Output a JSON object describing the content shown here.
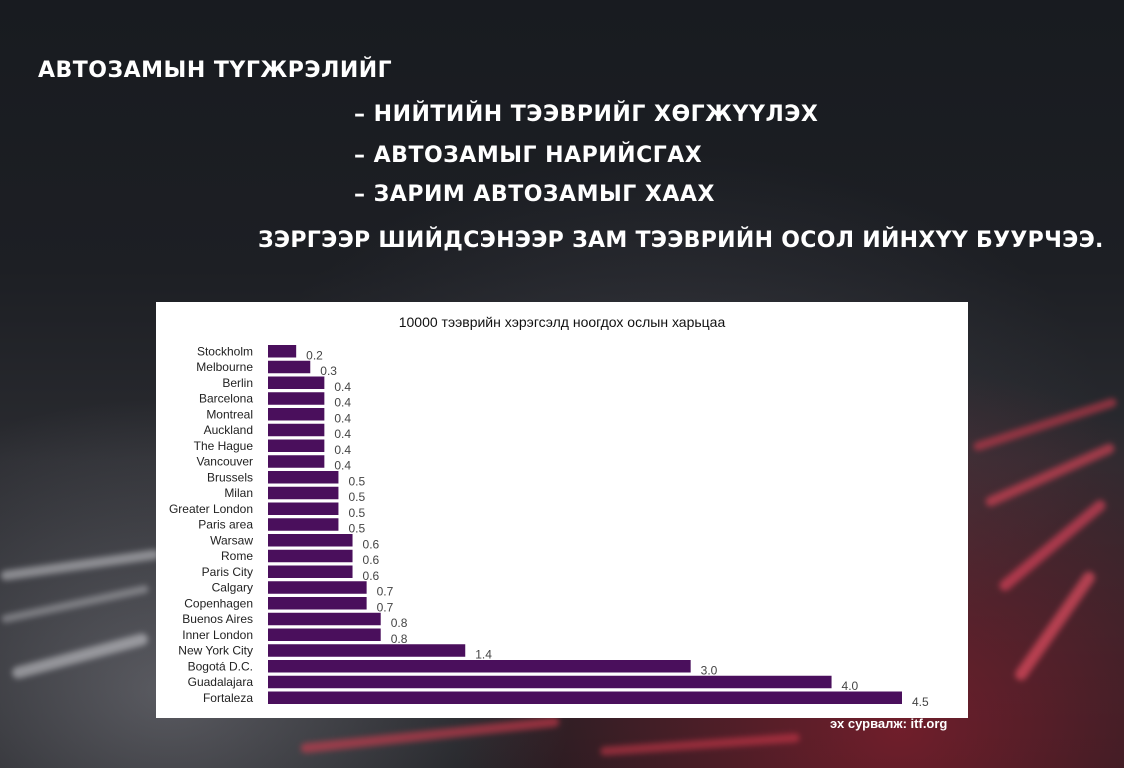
{
  "slide": {
    "heading": "АВТОЗАМЫН ТҮГЖРЭЛИЙГ",
    "bullets": [
      "– НИЙТИЙН ТЭЭВРИЙГ ХӨГЖҮҮЛЭХ",
      "– АВТОЗАМЫГ НАРИЙСГАХ",
      "– ЗАРИМ АВТОЗАМЫГ ХААХ"
    ],
    "conclusion": "ЗЭРГЭЭР ШИЙДСЭНЭЭР ЗАМ ТЭЭВРИЙН ОСОЛ ИЙНХҮҮ БУУРЧЭЭ.",
    "source": "эх сурвалж: itf.org"
  },
  "colors": {
    "bar": "#4a0f5c",
    "label": "#222222",
    "value": "#444444"
  },
  "chart_data": {
    "type": "bar",
    "orientation": "horizontal",
    "title": "10000 тээврийн хэрэгсэлд ноогдох ослын харьцаа",
    "xlabel": "",
    "ylabel": "",
    "xlim": [
      0,
      4.5
    ],
    "grid": false,
    "categories": [
      "Stockholm",
      "Melbourne",
      "Berlin",
      "Barcelona",
      "Montreal",
      "Auckland",
      "The Hague",
      "Vancouver",
      "Brussels",
      "Milan",
      "Greater London",
      "Paris area",
      "Warsaw",
      "Rome",
      "Paris City",
      "Calgary",
      "Copenhagen",
      "Buenos Aires",
      "Inner London",
      "New York City",
      "Bogotá D.C.",
      "Guadalajara",
      "Fortaleza"
    ],
    "values": [
      0.2,
      0.3,
      0.4,
      0.4,
      0.4,
      0.4,
      0.4,
      0.4,
      0.5,
      0.5,
      0.5,
      0.5,
      0.6,
      0.6,
      0.6,
      0.7,
      0.7,
      0.8,
      0.8,
      1.4,
      3.0,
      4.0,
      4.5
    ],
    "value_labels": [
      "0.2",
      "0.3",
      "0.4",
      "0.4",
      "0.4",
      "0.4",
      "0.4",
      "0.4",
      "0.5",
      "0.5",
      "0.5",
      "0.5",
      "0.6",
      "0.6",
      "0.6",
      "0.7",
      "0.7",
      "0.8",
      "0.8",
      "1.4",
      "3.0",
      "4.0",
      "4.5"
    ]
  }
}
